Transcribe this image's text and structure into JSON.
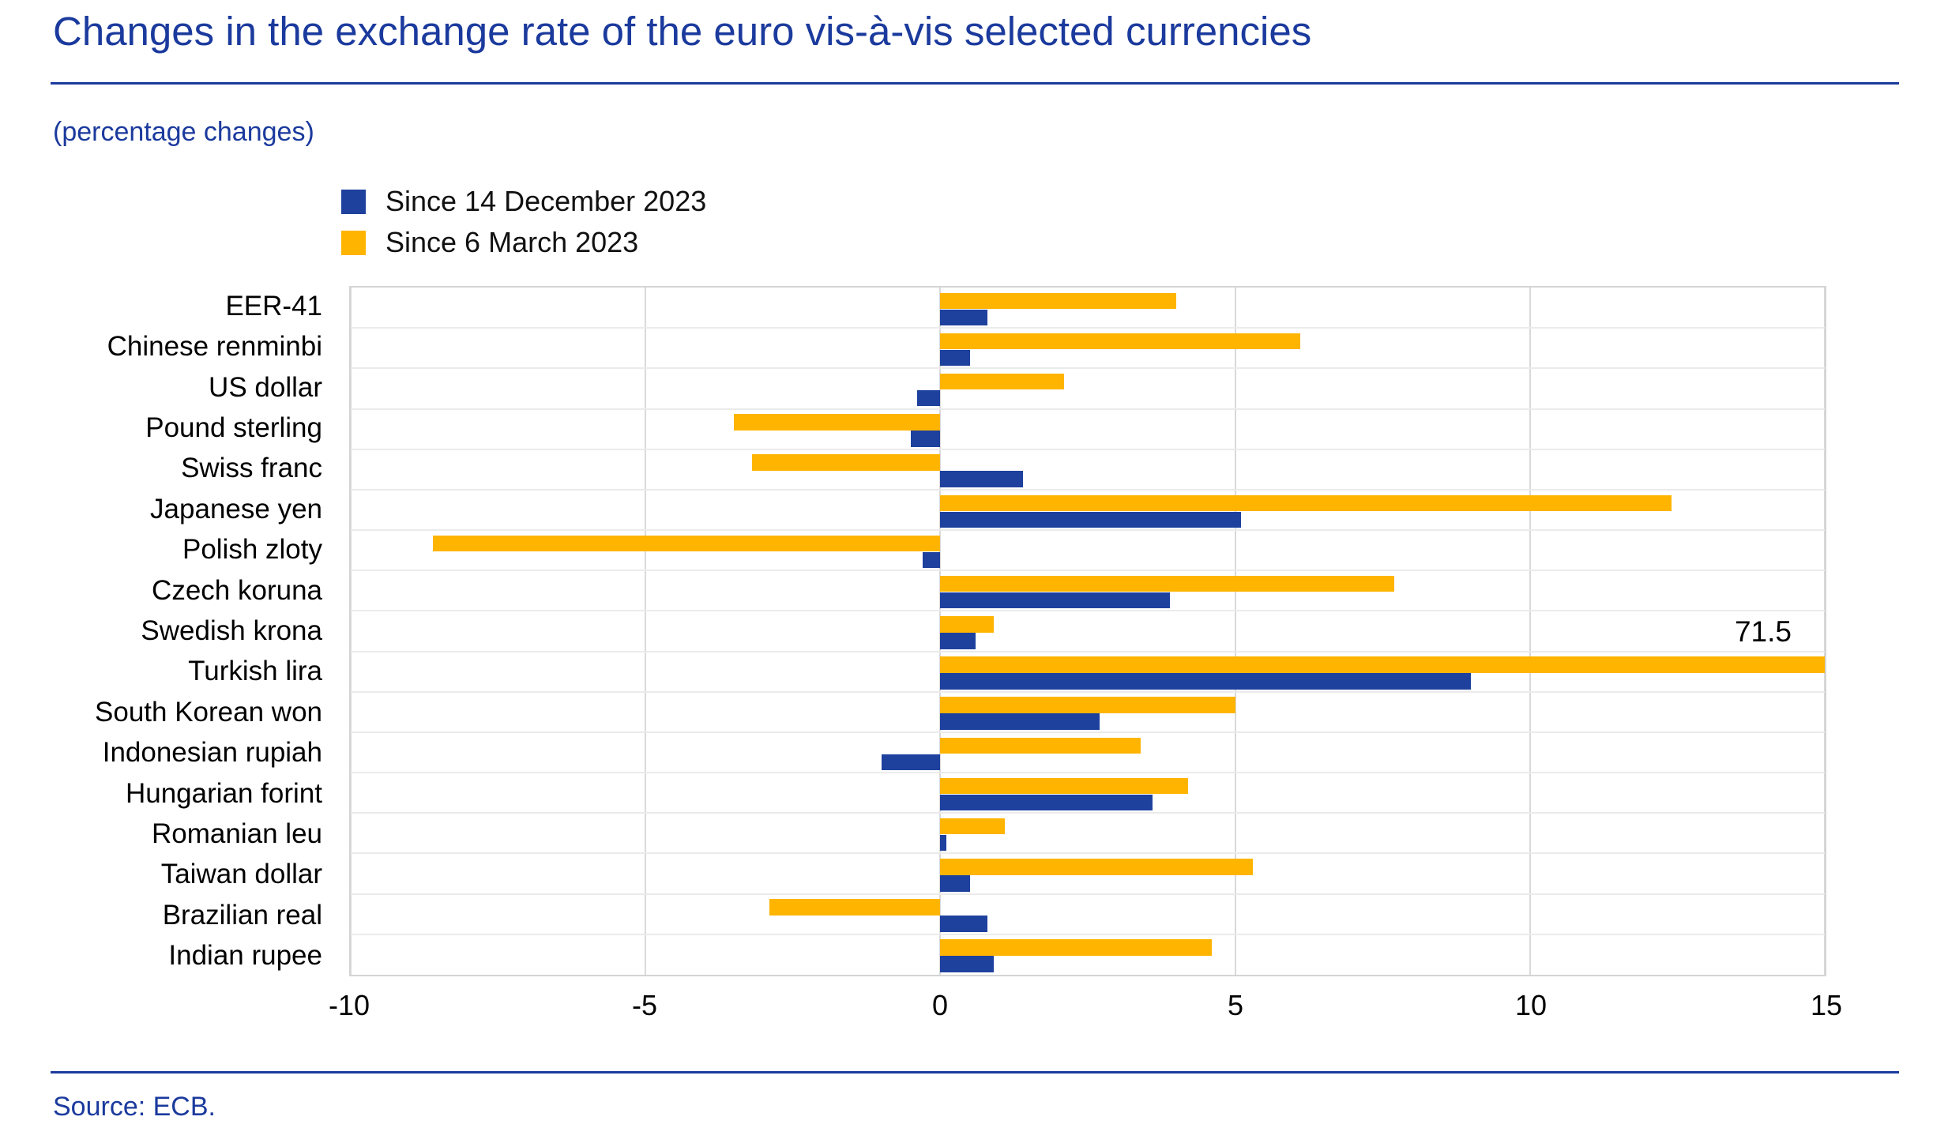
{
  "title": "Changes in the exchange rate of the euro vis-à-vis selected currencies",
  "subtitle": "(percentage changes)",
  "source": "Source: ECB.",
  "colors": {
    "text_blue": "#1b3a9d",
    "bar_blue": "#1e419e",
    "bar_orange": "#ffb400",
    "grid": "#d9d9d9"
  },
  "legend": [
    {
      "label": "Since 14 December 2023",
      "color": "#1e419e"
    },
    {
      "label": "Since 6 March 2023",
      "color": "#ffb400"
    }
  ],
  "chart_data": {
    "type": "bar",
    "orientation": "horizontal",
    "title": "Changes in the exchange rate of the euro vis-à-vis selected currencies",
    "subtitle": "(percentage changes)",
    "categories": [
      "EER-41",
      "Chinese renminbi",
      "US dollar",
      "Pound sterling",
      "Swiss franc",
      "Japanese yen",
      "Polish zloty",
      "Czech koruna",
      "Swedish krona",
      "Turkish lira",
      "South Korean won",
      "Indonesian rupiah",
      "Hungarian forint",
      "Romanian leu",
      "Taiwan dollar",
      "Brazilian real",
      "Indian rupee"
    ],
    "series": [
      {
        "name": "Since 14 December 2023",
        "color": "#1e419e",
        "values": [
          0.8,
          0.5,
          -0.4,
          -0.5,
          1.4,
          5.1,
          -0.3,
          3.9,
          0.6,
          9.0,
          2.7,
          -1.0,
          3.6,
          0.1,
          0.5,
          0.8,
          0.9
        ]
      },
      {
        "name": "Since 6 March 2023",
        "color": "#ffb400",
        "values": [
          4.0,
          6.1,
          2.1,
          -3.5,
          -3.2,
          12.4,
          -8.6,
          7.7,
          0.9,
          71.5,
          5.0,
          3.4,
          4.2,
          1.1,
          5.3,
          -2.9,
          4.6
        ]
      }
    ],
    "xlim": [
      -10,
      15
    ],
    "xticks": [
      -10,
      -5,
      0,
      5,
      10,
      15
    ],
    "clip_max": 15,
    "grid": true,
    "legend_position": "top-left",
    "annotations": [
      {
        "category": "Turkish lira",
        "series": "Since 6 March 2023",
        "text": "71.5"
      }
    ]
  }
}
